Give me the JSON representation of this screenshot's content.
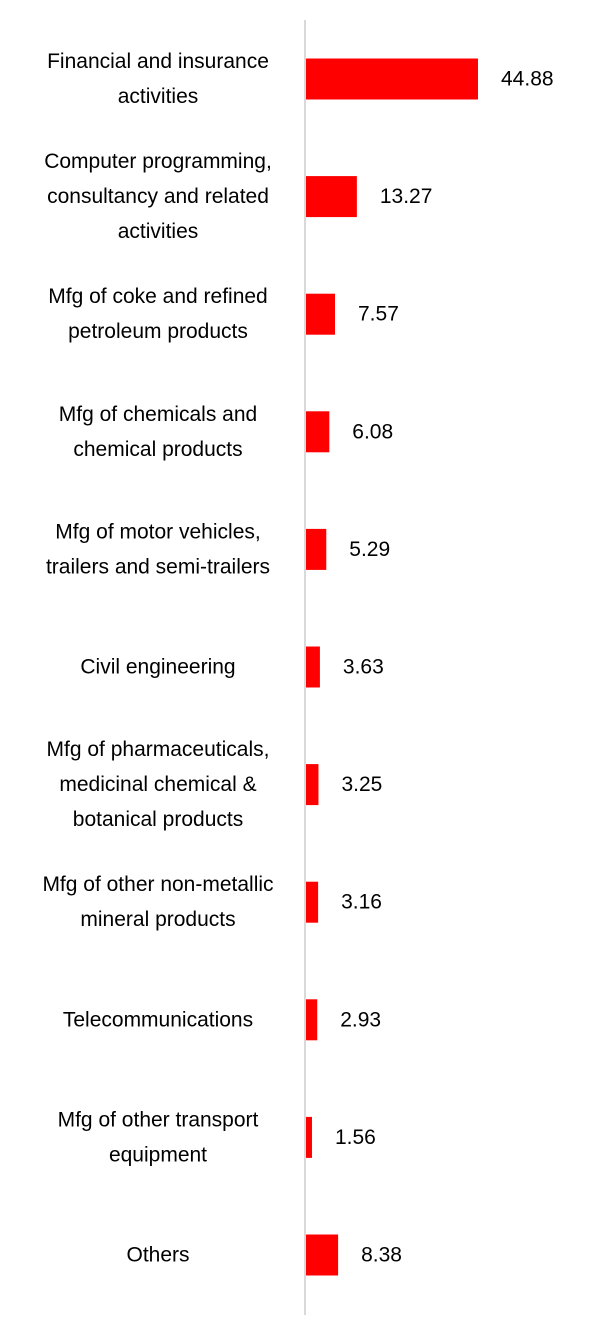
{
  "chart_data": {
    "type": "bar",
    "orientation": "horizontal",
    "categories": [
      "Financial and insurance activities",
      "Computer programming, consultancy and related activities",
      "Mfg of coke and refined petroleum products",
      "Mfg of chemicals and chemical products",
      "Mfg of motor vehicles, trailers and semi-trailers",
      "Civil engineering",
      "Mfg of pharmaceuticals, medicinal chemical & botanical products",
      "Mfg of other non-metallic mineral products",
      "Telecommunications",
      "Mfg of other transport equipment",
      "Others"
    ],
    "category_lines": [
      [
        "Financial and insurance",
        "activities"
      ],
      [
        "Computer programming,",
        "consultancy and related",
        "activities"
      ],
      [
        "Mfg of coke and refined",
        "petroleum products"
      ],
      [
        "Mfg of chemicals and",
        "chemical products"
      ],
      [
        "Mfg of motor vehicles,",
        "trailers and semi-trailers"
      ],
      [
        "Civil engineering"
      ],
      [
        "Mfg of pharmaceuticals,",
        "medicinal chemical &",
        "botanical products"
      ],
      [
        "Mfg of other non-metallic",
        "mineral products"
      ],
      [
        "Telecommunications"
      ],
      [
        "Mfg of other transport",
        "equipment"
      ],
      [
        "Others"
      ]
    ],
    "values": [
      44.88,
      13.27,
      7.57,
      6.08,
      5.29,
      3.63,
      3.25,
      3.16,
      2.93,
      1.56,
      8.38
    ],
    "value_labels": [
      "44.88",
      "13.27",
      "7.57",
      "6.08",
      "5.29",
      "3.63",
      "3.25",
      "3.16",
      "2.93",
      "1.56",
      "8.38"
    ],
    "bar_color": "#ff0000",
    "axis_color": "#d9d9d9",
    "grid": false,
    "legend": "none",
    "title": "",
    "xlabel": "",
    "ylabel": ""
  }
}
